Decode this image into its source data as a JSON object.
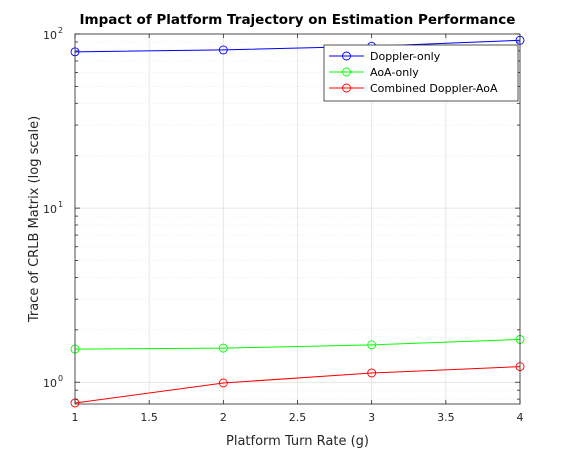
{
  "chart_data": {
    "type": "line",
    "title": "Impact of Platform Trajectory on Estimation Performance",
    "xlabel": "Platform Turn Rate (g)",
    "ylabel": "Trace of CRLB Matrix (log scale)",
    "xlim": [
      1,
      4
    ],
    "ylim": [
      0.75,
      100
    ],
    "yscale": "log",
    "grid": true,
    "legend_position": "top-right",
    "x": [
      1,
      2,
      3,
      4
    ],
    "xticks": [
      "1",
      "1.5",
      "2",
      "2.5",
      "3",
      "3.5",
      "4"
    ],
    "xtick_values": [
      1,
      1.5,
      2,
      2.5,
      3,
      3.5,
      4
    ],
    "yticks": [
      {
        "value": 1,
        "base": "10",
        "exp": "0"
      },
      {
        "value": 10,
        "base": "10",
        "exp": "1"
      },
      {
        "value": 100,
        "base": "10",
        "exp": "2"
      }
    ],
    "series": [
      {
        "name": "Doppler-only",
        "color": "#0000ff",
        "marker": "circle",
        "values": [
          79,
          81,
          85,
          92
        ]
      },
      {
        "name": "AoA-only",
        "color": "#00ff00",
        "marker": "circle",
        "values": [
          1.55,
          1.57,
          1.64,
          1.76
        ]
      },
      {
        "name": "Combined Doppler-AoA",
        "color": "#ff0000",
        "marker": "circle",
        "values": [
          0.76,
          0.99,
          1.13,
          1.23
        ]
      }
    ]
  }
}
